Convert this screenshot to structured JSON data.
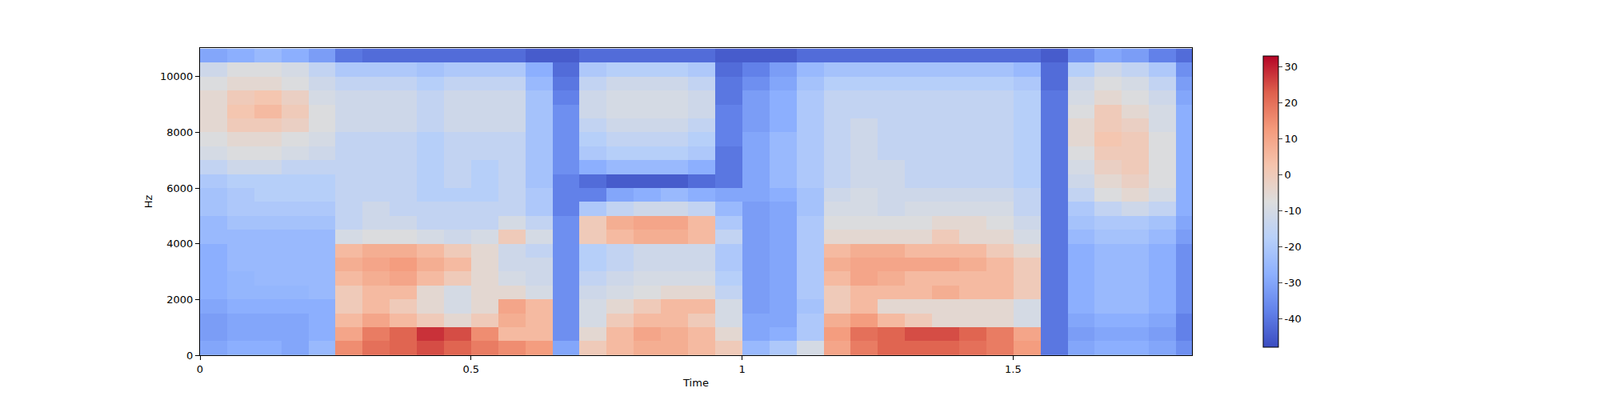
{
  "chart_data": {
    "type": "heatmap",
    "x_label": "Time",
    "y_label": "Hz",
    "x": [
      0.025,
      0.075,
      0.125,
      0.175,
      0.225,
      0.275,
      0.325,
      0.375,
      0.425,
      0.475,
      0.525,
      0.575,
      0.625,
      0.675,
      0.725,
      0.775,
      0.825,
      0.875,
      0.925,
      0.975,
      1.025,
      1.075,
      1.125,
      1.175,
      1.225,
      1.275,
      1.325,
      1.375,
      1.425,
      1.475,
      1.525,
      1.575,
      1.625,
      1.675,
      1.725,
      1.775,
      1.825
    ],
    "y": [
      250,
      750,
      1250,
      1750,
      2250,
      2750,
      3250,
      3750,
      4250,
      4750,
      5250,
      5750,
      6250,
      6750,
      7250,
      7750,
      8250,
      8750,
      9250,
      9750,
      10250,
      10750
    ],
    "z": [
      [
        -30,
        -28,
        -28,
        -30,
        -25,
        15,
        20,
        22,
        25,
        22,
        18,
        15,
        12,
        -30,
        0,
        5,
        8,
        8,
        5,
        0,
        -25,
        -20,
        -10,
        10,
        18,
        22,
        22,
        22,
        20,
        18,
        12,
        -40,
        -30,
        -28,
        -28,
        -30,
        -35
      ],
      [
        -32,
        -30,
        -30,
        -30,
        -28,
        10,
        18,
        22,
        28,
        25,
        15,
        5,
        5,
        -35,
        -5,
        5,
        10,
        8,
        5,
        -5,
        -30,
        -28,
        -20,
        12,
        20,
        22,
        25,
        25,
        22,
        18,
        10,
        -40,
        -32,
        -30,
        -30,
        -32,
        -38
      ],
      [
        -32,
        -30,
        -30,
        -30,
        -28,
        5,
        10,
        5,
        0,
        -5,
        0,
        8,
        5,
        -35,
        -10,
        0,
        5,
        5,
        0,
        -10,
        -30,
        -30,
        -20,
        8,
        12,
        5,
        0,
        -5,
        -5,
        -5,
        -10,
        -40,
        -30,
        -28,
        -28,
        -30,
        -38
      ],
      [
        -30,
        -28,
        -28,
        -28,
        -28,
        0,
        5,
        0,
        -5,
        -10,
        -5,
        10,
        5,
        -35,
        -10,
        -5,
        0,
        5,
        5,
        -10,
        -32,
        -30,
        -22,
        0,
        5,
        -5,
        -5,
        -5,
        -5,
        -5,
        -10,
        -40,
        -28,
        -25,
        -25,
        -28,
        -35
      ],
      [
        -28,
        -26,
        -26,
        -26,
        -25,
        0,
        5,
        5,
        -5,
        -10,
        -5,
        -5,
        -10,
        -35,
        -12,
        -10,
        -8,
        -5,
        -5,
        -15,
        -32,
        -30,
        -20,
        0,
        5,
        5,
        5,
        8,
        5,
        5,
        0,
        -40,
        -28,
        -25,
        -25,
        -28,
        -35
      ],
      [
        -28,
        -26,
        -25,
        -25,
        -25,
        5,
        8,
        10,
        5,
        0,
        -5,
        -10,
        -12,
        -35,
        -15,
        -12,
        -10,
        -10,
        -10,
        -18,
        -32,
        -30,
        -20,
        5,
        10,
        8,
        5,
        5,
        5,
        5,
        0,
        -40,
        -28,
        -25,
        -25,
        -28,
        -35
      ],
      [
        -28,
        -25,
        -25,
        -25,
        -25,
        8,
        10,
        12,
        8,
        5,
        -5,
        -12,
        -12,
        -35,
        -18,
        -15,
        -12,
        -12,
        -12,
        -20,
        -32,
        -30,
        -20,
        8,
        10,
        10,
        10,
        10,
        8,
        5,
        0,
        -40,
        -28,
        -25,
        -25,
        -28,
        -35
      ],
      [
        -28,
        -25,
        -25,
        -25,
        -25,
        5,
        8,
        8,
        5,
        0,
        -5,
        -12,
        -15,
        -35,
        -18,
        -15,
        -12,
        -12,
        -12,
        -20,
        -32,
        -30,
        -20,
        5,
        8,
        8,
        5,
        5,
        5,
        0,
        -5,
        -40,
        -28,
        -25,
        -25,
        -28,
        -35
      ],
      [
        -25,
        -25,
        -25,
        -25,
        -25,
        -10,
        -8,
        -8,
        -10,
        -12,
        -10,
        0,
        -10,
        -35,
        0,
        5,
        8,
        8,
        5,
        -15,
        -32,
        -30,
        -20,
        -5,
        -5,
        -5,
        -5,
        0,
        -5,
        -5,
        -10,
        -40,
        -25,
        -22,
        -22,
        -25,
        -32
      ],
      [
        -25,
        -22,
        -22,
        -22,
        -22,
        -15,
        -12,
        -12,
        -15,
        -15,
        -15,
        -10,
        -15,
        -35,
        0,
        8,
        10,
        10,
        5,
        -20,
        -32,
        -30,
        -20,
        -8,
        -8,
        -8,
        -8,
        -5,
        -5,
        -8,
        -12,
        -40,
        -22,
        -20,
        -20,
        -22,
        -30
      ],
      [
        -22,
        -20,
        -20,
        -20,
        -20,
        -15,
        -12,
        -15,
        -15,
        -15,
        -15,
        -15,
        -20,
        -38,
        -20,
        -15,
        -12,
        -12,
        -15,
        -25,
        -32,
        -30,
        -22,
        -10,
        -10,
        -12,
        -10,
        -10,
        -10,
        -10,
        -15,
        -40,
        -20,
        -15,
        -12,
        -15,
        -28
      ],
      [
        -22,
        -20,
        -18,
        -18,
        -18,
        -15,
        -15,
        -15,
        -18,
        -18,
        -18,
        -15,
        -20,
        -38,
        -38,
        -30,
        -28,
        -25,
        -28,
        -30,
        -30,
        -28,
        -22,
        -12,
        -10,
        -12,
        -12,
        -12,
        -12,
        -12,
        -15,
        -40,
        -15,
        -8,
        -5,
        -10,
        -28
      ],
      [
        -20,
        -18,
        -18,
        -18,
        -18,
        -15,
        -15,
        -15,
        -18,
        -15,
        -18,
        -15,
        -22,
        -38,
        -42,
        -45,
        -45,
        -45,
        -42,
        -40,
        -30,
        -25,
        -20,
        -15,
        -12,
        -12,
        -15,
        -15,
        -15,
        -15,
        -18,
        -40,
        -12,
        -5,
        -2,
        -8,
        -28
      ],
      [
        -15,
        -12,
        -12,
        -15,
        -15,
        -15,
        -15,
        -15,
        -18,
        -15,
        -18,
        -15,
        -22,
        -35,
        -28,
        -25,
        -25,
        -25,
        -28,
        -40,
        -30,
        -25,
        -20,
        -15,
        -12,
        -12,
        -15,
        -15,
        -15,
        -15,
        -18,
        -40,
        -10,
        -2,
        0,
        -8,
        -28
      ],
      [
        -10,
        -8,
        -8,
        -10,
        -12,
        -15,
        -15,
        -15,
        -18,
        -15,
        -15,
        -15,
        -22,
        -35,
        -20,
        -18,
        -18,
        -18,
        -20,
        -40,
        -30,
        -25,
        -20,
        -15,
        -12,
        -15,
        -15,
        -15,
        -15,
        -15,
        -18,
        -40,
        -8,
        0,
        0,
        -8,
        -28
      ],
      [
        -8,
        -5,
        -5,
        -8,
        -10,
        -15,
        -15,
        -15,
        -18,
        -15,
        -15,
        -15,
        -22,
        -35,
        -18,
        -15,
        -15,
        -15,
        -18,
        -38,
        -30,
        -25,
        -20,
        -15,
        -12,
        -15,
        -15,
        -15,
        -15,
        -15,
        -18,
        -40,
        -5,
        2,
        0,
        -8,
        -28
      ],
      [
        -5,
        0,
        0,
        -2,
        -8,
        -12,
        -12,
        -12,
        -15,
        -12,
        -12,
        -12,
        -22,
        -35,
        -15,
        -12,
        -12,
        -12,
        -15,
        -38,
        -32,
        -28,
        -20,
        -15,
        -12,
        -15,
        -15,
        -15,
        -15,
        -15,
        -18,
        -40,
        -5,
        0,
        -2,
        -10,
        -28
      ],
      [
        -5,
        2,
        5,
        0,
        -8,
        -12,
        -12,
        -12,
        -15,
        -12,
        -12,
        -12,
        -22,
        -35,
        -12,
        -10,
        -10,
        -10,
        -12,
        -38,
        -32,
        -28,
        -20,
        -15,
        -15,
        -15,
        -15,
        -15,
        -15,
        -15,
        -18,
        -40,
        -8,
        0,
        -5,
        -10,
        -28
      ],
      [
        -5,
        0,
        2,
        -2,
        -10,
        -12,
        -12,
        -12,
        -15,
        -12,
        -12,
        -12,
        -22,
        -38,
        -12,
        -10,
        -10,
        -10,
        -12,
        -40,
        -32,
        -28,
        -20,
        -15,
        -15,
        -15,
        -15,
        -15,
        -15,
        -15,
        -18,
        -40,
        -10,
        -5,
        -8,
        -12,
        -30
      ],
      [
        -8,
        -5,
        -5,
        -8,
        -12,
        -15,
        -15,
        -15,
        -18,
        -15,
        -15,
        -15,
        -25,
        -40,
        -15,
        -12,
        -12,
        -12,
        -15,
        -40,
        -35,
        -30,
        -22,
        -18,
        -18,
        -18,
        -18,
        -18,
        -18,
        -18,
        -20,
        -42,
        -12,
        -8,
        -10,
        -15,
        -32
      ],
      [
        -12,
        -8,
        -8,
        -10,
        -15,
        -20,
        -20,
        -20,
        -22,
        -20,
        -20,
        -20,
        -28,
        -42,
        -20,
        -18,
        -18,
        -18,
        -20,
        -42,
        -38,
        -32,
        -25,
        -22,
        -22,
        -22,
        -22,
        -22,
        -22,
        -22,
        -25,
        -42,
        -18,
        -12,
        -15,
        -20,
        -35
      ],
      [
        -30,
        -28,
        -25,
        -28,
        -32,
        -40,
        -42,
        -42,
        -42,
        -42,
        -42,
        -42,
        -45,
        -45,
        -42,
        -42,
        -42,
        -42,
        -42,
        -45,
        -45,
        -45,
        -42,
        -42,
        -42,
        -42,
        -42,
        -42,
        -42,
        -42,
        -42,
        -45,
        -35,
        -30,
        -32,
        -38,
        -42
      ]
    ],
    "xlim": [
      0,
      1.83
    ],
    "ylim": [
      0,
      11025
    ],
    "xticks": [
      0,
      0.5,
      1,
      1.5
    ],
    "yticks": [
      0,
      2000,
      4000,
      6000,
      8000,
      10000
    ],
    "colorbar_range": [
      -48,
      33
    ],
    "colorbar_ticks": [
      -40,
      -30,
      -20,
      -10,
      0,
      10,
      20,
      30
    ]
  }
}
